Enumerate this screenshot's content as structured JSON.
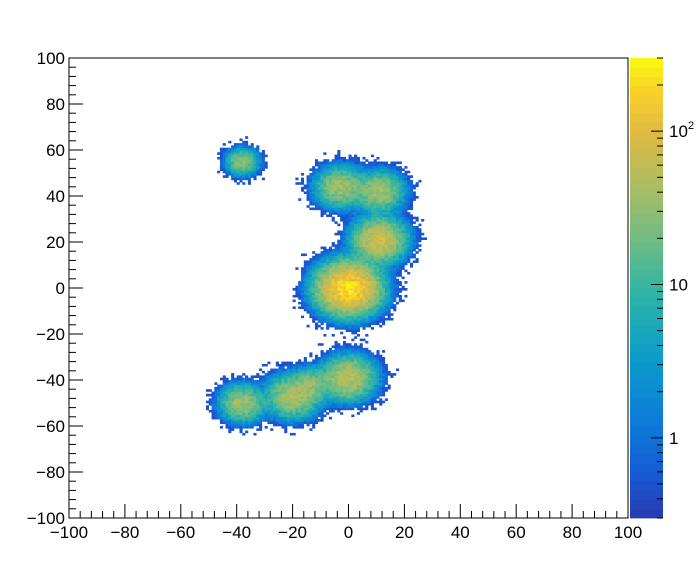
{
  "chart_data": {
    "type": "heatmap",
    "title": "",
    "xlabel": "",
    "ylabel": "",
    "xlim": [
      -100,
      100
    ],
    "ylim": [
      -100,
      100
    ],
    "x_ticks": [
      -100,
      -80,
      -60,
      -40,
      -20,
      0,
      20,
      40,
      60,
      80,
      100
    ],
    "y_ticks": [
      -100,
      -80,
      -60,
      -40,
      -20,
      0,
      20,
      40,
      60,
      80,
      100
    ],
    "x_tick_labels": [
      "−100",
      "−80",
      "−60",
      "−40",
      "−20",
      "0",
      "20",
      "40",
      "60",
      "80",
      "100"
    ],
    "y_tick_labels": [
      "−100",
      "−80",
      "−60",
      "−40",
      "−20",
      "0",
      "20",
      "40",
      "60",
      "80",
      "100"
    ],
    "bin_width": 1,
    "grid": false,
    "z_scale": "log",
    "z_range": [
      0.3,
      300
    ],
    "colorbar": {
      "labels": [
        {
          "value": 1,
          "base": "1",
          "exp": ""
        },
        {
          "value": 10,
          "base": "10",
          "exp": ""
        },
        {
          "value": 100,
          "base": "10",
          "exp": "2"
        }
      ]
    },
    "clusters": [
      {
        "x": 0,
        "y": 0,
        "sigma": 5.2,
        "peak": 220
      },
      {
        "x": 11,
        "y": 21,
        "sigma": 4.5,
        "peak": 80
      },
      {
        "x": -3,
        "y": 44,
        "sigma": 4.2,
        "peak": 40
      },
      {
        "x": 11,
        "y": 42,
        "sigma": 4.2,
        "peak": 40
      },
      {
        "x": -38,
        "y": 55,
        "sigma": 2.8,
        "peak": 30
      },
      {
        "x": 0,
        "y": -39,
        "sigma": 4.5,
        "peak": 60
      },
      {
        "x": -13,
        "y": -42,
        "sigma": 3.5,
        "peak": 25
      },
      {
        "x": -20,
        "y": -47,
        "sigma": 4.5,
        "peak": 45
      },
      {
        "x": -38,
        "y": -50,
        "sigma": 3.8,
        "peak": 40
      }
    ]
  }
}
